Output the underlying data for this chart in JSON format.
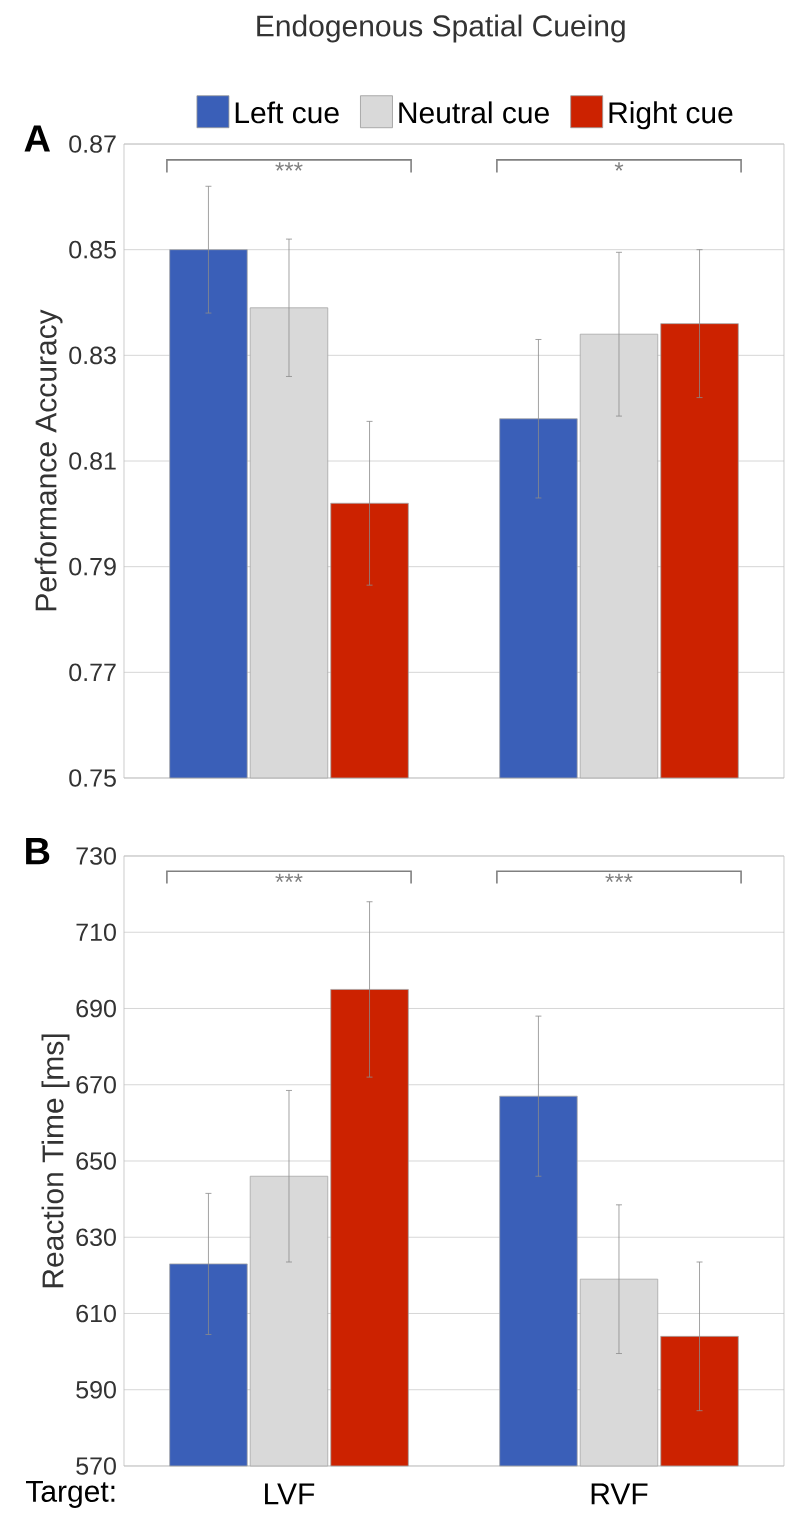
{
  "chart_data": [
    {
      "type": "bar",
      "title": "Endogenous Spatial Cueing",
      "ylabel": "Performance Accuracy",
      "categories": [
        null,
        null
      ],
      "series": [
        {
          "name": "Left cue",
          "color": "#3a5fb8",
          "values": [
            0.85,
            0.818
          ],
          "errors": [
            0.012,
            0.015
          ]
        },
        {
          "name": "Neutral cue",
          "color": "#d9d9d9",
          "values": [
            0.839,
            0.834
          ],
          "errors": [
            0.013,
            0.0155
          ]
        },
        {
          "name": "Right cue",
          "color": "#cc2200",
          "values": [
            0.802,
            0.836
          ],
          "errors": [
            0.0155,
            0.014
          ]
        }
      ],
      "ylim": [
        0.75,
        0.87
      ],
      "yticks": [
        0.75,
        0.77,
        0.79,
        0.81,
        0.83,
        0.85,
        0.87
      ],
      "grid": "y",
      "legend": "top",
      "tick_labels": "y",
      "annotations": [
        "A",
        "***",
        "*"
      ]
    },
    {
      "type": "bar",
      "ylabel": "Reaction Time [ms]",
      "xlabel": "Target:",
      "categories": [
        "LVF",
        "RVF"
      ],
      "series": [
        {
          "color": "#3a5fb8",
          "values": [
            623,
            667
          ],
          "errors": [
            18.5,
            21
          ]
        },
        {
          "color": "#d9d9d9",
          "values": [
            646,
            619
          ],
          "errors": [
            22.5,
            19.5
          ]
        },
        {
          "color": "#cc2200",
          "values": [
            695,
            604
          ],
          "errors": [
            23,
            19.5
          ]
        }
      ],
      "ylim": [
        570,
        730
      ],
      "yticks": [
        570,
        590,
        610,
        630,
        650,
        670,
        690,
        710,
        730
      ],
      "grid": "y",
      "annotations": [
        "B",
        "***",
        "***"
      ]
    }
  ]
}
